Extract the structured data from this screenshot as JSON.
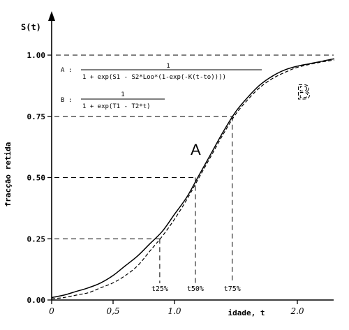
{
  "chart_data": {
    "type": "line",
    "ylabel_top": "S(t)",
    "ylabel": "fracção retida",
    "xlabel": "idade, t",
    "xlim": [
      0,
      2.3
    ],
    "ylim": [
      0,
      1.0
    ],
    "x_ticks": [
      "0",
      "0,5",
      "1.0",
      "2.0"
    ],
    "x_tick_values": [
      0,
      0.5,
      1.0,
      2.0
    ],
    "y_ticks": [
      "0.00",
      "0.25",
      "0.50",
      "0.75",
      "1.00"
    ],
    "y_tick_values": [
      0,
      0.25,
      0.5,
      0.75,
      1.0
    ],
    "series": [
      {
        "name": "A",
        "style": "solid",
        "x": [
          0,
          0.1,
          0.2,
          0.3,
          0.4,
          0.5,
          0.6,
          0.7,
          0.8,
          0.9,
          1.0,
          1.1,
          1.2,
          1.3,
          1.4,
          1.5,
          1.6,
          1.7,
          1.8,
          1.9,
          2.0,
          2.1,
          2.2,
          2.3
        ],
        "y": [
          0.01,
          0.02,
          0.035,
          0.05,
          0.07,
          0.1,
          0.14,
          0.18,
          0.23,
          0.28,
          0.35,
          0.42,
          0.51,
          0.6,
          0.69,
          0.77,
          0.83,
          0.88,
          0.915,
          0.94,
          0.955,
          0.965,
          0.975,
          0.985
        ]
      },
      {
        "name": "B",
        "style": "dashed",
        "x": [
          0,
          0.1,
          0.2,
          0.3,
          0.4,
          0.5,
          0.6,
          0.7,
          0.8,
          0.9,
          1.0,
          1.1,
          1.2,
          1.3,
          1.4,
          1.5,
          1.6,
          1.7,
          1.8,
          1.9,
          2.0,
          2.1,
          2.2,
          2.3
        ],
        "y": [
          0.005,
          0.01,
          0.02,
          0.03,
          0.05,
          0.07,
          0.1,
          0.14,
          0.2,
          0.26,
          0.33,
          0.41,
          0.5,
          0.59,
          0.68,
          0.76,
          0.82,
          0.87,
          0.905,
          0.93,
          0.95,
          0.962,
          0.972,
          0.98
        ]
      }
    ],
    "percentiles": [
      {
        "label": "t25%",
        "t": 0.88,
        "s": 0.25
      },
      {
        "label": "t50%",
        "t": 1.17,
        "s": 0.5
      },
      {
        "label": "t75%",
        "t": 1.47,
        "s": 0.75
      }
    ],
    "curve_labels": {
      "a": "A",
      "b": "B"
    },
    "formulas": {
      "a_prefix": "A :",
      "a_numerator": "1",
      "a_denominator": "1 + exp(S1 - S2*Loo*(1-exp(-K(t-to))))",
      "b_prefix": "B :",
      "b_numerator": "1",
      "b_denominator": "1 + exp(T1 - T2*t)"
    }
  }
}
